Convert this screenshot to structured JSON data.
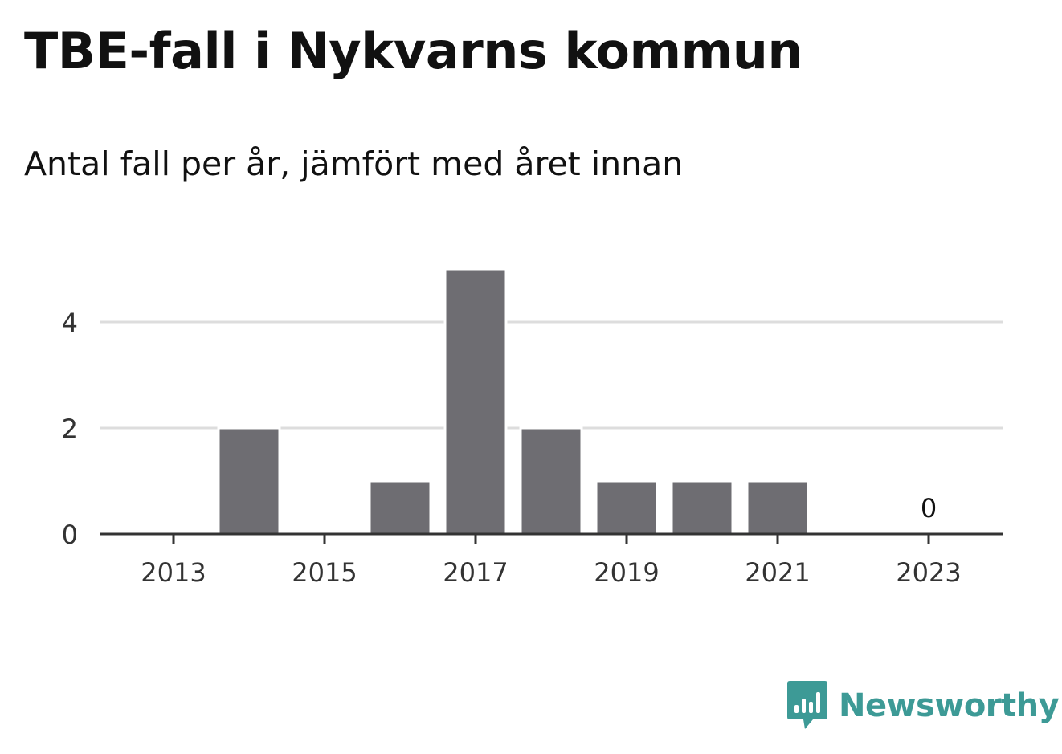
{
  "header": {
    "title": "TBE-fall i Nykvarns kommun",
    "subtitle": "Antal fall per år, jämfört med året innan"
  },
  "brand": {
    "name": "Newsworthy",
    "color": "#3d9a96",
    "icon": "bar-chart-speech-bubble-icon"
  },
  "colors": {
    "bar": "#6e6d72",
    "grid": "#dddddd",
    "axis": "#333333"
  },
  "chart_data": {
    "type": "bar",
    "categories": [
      "2013",
      "2014",
      "2015",
      "2016",
      "2017",
      "2018",
      "2019",
      "2020",
      "2021",
      "2022",
      "2023"
    ],
    "values": [
      0,
      2,
      0,
      1,
      5,
      2,
      1,
      1,
      1,
      0,
      0
    ],
    "x_tick_labels": [
      "2013",
      "2015",
      "2017",
      "2019",
      "2021",
      "2023"
    ],
    "y_ticks": [
      0,
      2,
      4
    ],
    "ylim": [
      0,
      5
    ],
    "grid": true,
    "data_labels": [
      {
        "category": "2023",
        "text": "0"
      }
    ],
    "title": "TBE-fall i Nykvarns kommun",
    "subtitle": "Antal fall per år, jämfört med året innan",
    "xlabel": "",
    "ylabel": ""
  }
}
